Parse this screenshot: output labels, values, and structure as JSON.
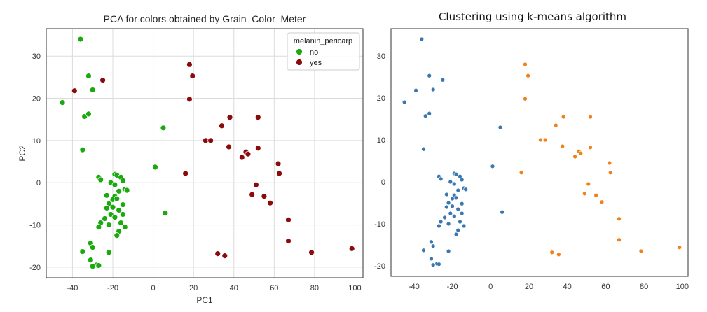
{
  "chart_data": [
    {
      "type": "scatter",
      "title": "PCA for colors obtained by Grain_Color_Meter",
      "xlabel": "PC1",
      "ylabel": "PC2",
      "xlim": [
        -53,
        104
      ],
      "ylim": [
        -22.5,
        36.5
      ],
      "xticks": [
        -40,
        -20,
        0,
        20,
        40,
        60,
        80,
        100
      ],
      "yticks": [
        -20,
        -10,
        0,
        10,
        20,
        30
      ],
      "grid": true,
      "legend": {
        "title": "melanin_pericarp",
        "placement": "top-right"
      },
      "series": [
        {
          "name": "no",
          "color": "#1aaa10",
          "points": [
            [
              -36,
              34
            ],
            [
              -45,
              19
            ],
            [
              -32,
              25.3
            ],
            [
              -30,
              22
            ],
            [
              -34,
              15.7
            ],
            [
              -32,
              16.3
            ],
            [
              -35,
              7.8
            ],
            [
              -27,
              1.3
            ],
            [
              -26,
              0.7
            ],
            [
              -19,
              2
            ],
            [
              -18,
              1.8
            ],
            [
              -16,
              1.3
            ],
            [
              -15,
              0.5
            ],
            [
              -21,
              0
            ],
            [
              -19,
              -0.5
            ],
            [
              -14,
              -1.5
            ],
            [
              -13,
              -1.8
            ],
            [
              -17,
              -2
            ],
            [
              -23,
              -3
            ],
            [
              -19,
              -3.2
            ],
            [
              -20,
              -4
            ],
            [
              -18,
              -3.8
            ],
            [
              -22,
              -5
            ],
            [
              -15,
              -5.2
            ],
            [
              -20,
              -5.8
            ],
            [
              -23,
              -6
            ],
            [
              -17,
              -6.5
            ],
            [
              -21,
              -7.5
            ],
            [
              -15,
              -7.5
            ],
            [
              -19,
              -8.2
            ],
            [
              -24,
              -8.5
            ],
            [
              -26,
              -9.5
            ],
            [
              -22,
              -10
            ],
            [
              -16,
              -9.5
            ],
            [
              -14,
              -10.5
            ],
            [
              -27,
              -10.5
            ],
            [
              -17,
              -11.5
            ],
            [
              -18,
              -12.5
            ],
            [
              -31,
              -14.3
            ],
            [
              -30,
              -15.3
            ],
            [
              -35,
              -16.3
            ],
            [
              -22,
              -16.5
            ],
            [
              -31,
              -18.3
            ],
            [
              -28,
              -19.5
            ],
            [
              -30,
              -19.8
            ],
            [
              -27,
              -19.6
            ],
            [
              5,
              13
            ],
            [
              1,
              3.7
            ],
            [
              6,
              -7.2
            ]
          ]
        },
        {
          "name": "yes",
          "color": "#8b0a0a",
          "points": [
            [
              -39,
              21.8
            ],
            [
              -25,
              24.3
            ],
            [
              18,
              28
            ],
            [
              19.5,
              25.3
            ],
            [
              18,
              19.8
            ],
            [
              38,
              15.5
            ],
            [
              52,
              15.5
            ],
            [
              34,
              13.5
            ],
            [
              26,
              10
            ],
            [
              28.5,
              10
            ],
            [
              37.5,
              8.5
            ],
            [
              52,
              8.2
            ],
            [
              46,
              7.3
            ],
            [
              47,
              6.8
            ],
            [
              44,
              6
            ],
            [
              62,
              4.5
            ],
            [
              62.5,
              2.2
            ],
            [
              16,
              2.2
            ],
            [
              51,
              -0.5
            ],
            [
              55,
              -3.2
            ],
            [
              49,
              -2.8
            ],
            [
              58,
              -4.8
            ],
            [
              67,
              -8.8
            ],
            [
              67,
              -13.8
            ],
            [
              32,
              -16.8
            ],
            [
              35.5,
              -17.3
            ],
            [
              78.5,
              -16.5
            ],
            [
              98.5,
              -15.6
            ]
          ]
        }
      ]
    },
    {
      "type": "scatter",
      "title": "Clustering using k-means algorithm",
      "xlabel": "",
      "ylabel": "",
      "xlim": [
        -52,
        103
      ],
      "ylim": [
        -22.5,
        36.5
      ],
      "xticks": [
        -40,
        -20,
        0,
        20,
        40,
        60,
        80,
        100
      ],
      "yticks": [
        -20,
        -10,
        0,
        10,
        20,
        30
      ],
      "grid": false,
      "series": [
        {
          "color": "#3b78b0",
          "points": [
            [
              -36,
              34
            ],
            [
              -45,
              19
            ],
            [
              -39,
              21.8
            ],
            [
              -25,
              24.3
            ],
            [
              -32,
              25.3
            ],
            [
              -30,
              22
            ],
            [
              -34,
              15.7
            ],
            [
              -32,
              16.3
            ],
            [
              -35,
              7.8
            ],
            [
              -27,
              1.3
            ],
            [
              -26,
              0.7
            ],
            [
              -19,
              2
            ],
            [
              -18,
              1.8
            ],
            [
              -16,
              1.3
            ],
            [
              -15,
              0.5
            ],
            [
              -21,
              0
            ],
            [
              -19,
              -0.5
            ],
            [
              -14,
              -1.5
            ],
            [
              -13,
              -1.8
            ],
            [
              -17,
              -2
            ],
            [
              -23,
              -3
            ],
            [
              -19,
              -3.2
            ],
            [
              -20,
              -4
            ],
            [
              -18,
              -3.8
            ],
            [
              -22,
              -5
            ],
            [
              -15,
              -5.2
            ],
            [
              -20,
              -5.8
            ],
            [
              -23,
              -6
            ],
            [
              -17,
              -6.5
            ],
            [
              -21,
              -7.5
            ],
            [
              -15,
              -7.5
            ],
            [
              -19,
              -8.2
            ],
            [
              -24,
              -8.5
            ],
            [
              -26,
              -9.5
            ],
            [
              -22,
              -10
            ],
            [
              -16,
              -9.5
            ],
            [
              -14,
              -10.5
            ],
            [
              -27,
              -10.5
            ],
            [
              -17,
              -11.5
            ],
            [
              -18,
              -12.5
            ],
            [
              -31,
              -14.3
            ],
            [
              -30,
              -15.3
            ],
            [
              -35,
              -16.3
            ],
            [
              -22,
              -16.5
            ],
            [
              -31,
              -18.3
            ],
            [
              -28,
              -19.5
            ],
            [
              -30,
              -19.8
            ],
            [
              -27,
              -19.6
            ],
            [
              5,
              13
            ],
            [
              1,
              3.7
            ],
            [
              6,
              -7.2
            ]
          ]
        },
        {
          "color": "#f0821e",
          "points": [
            [
              18,
              28
            ],
            [
              19.5,
              25.3
            ],
            [
              18,
              19.8
            ],
            [
              38,
              15.5
            ],
            [
              52,
              15.5
            ],
            [
              34,
              13.5
            ],
            [
              26,
              10
            ],
            [
              28.5,
              10
            ],
            [
              37.5,
              8.5
            ],
            [
              52,
              8.2
            ],
            [
              46,
              7.3
            ],
            [
              47,
              6.8
            ],
            [
              44,
              6
            ],
            [
              62,
              4.5
            ],
            [
              62.5,
              2.2
            ],
            [
              16,
              2.2
            ],
            [
              51,
              -0.5
            ],
            [
              55,
              -3.2
            ],
            [
              49,
              -2.8
            ],
            [
              58,
              -4.8
            ],
            [
              67,
              -8.8
            ],
            [
              67,
              -13.8
            ],
            [
              32,
              -16.8
            ],
            [
              35.5,
              -17.3
            ],
            [
              78.5,
              -16.5
            ],
            [
              98.5,
              -15.6
            ]
          ]
        }
      ]
    }
  ]
}
